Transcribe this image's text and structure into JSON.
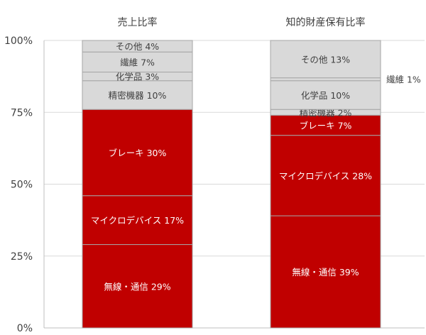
{
  "chart_data": {
    "type": "bar",
    "stacked": true,
    "ylim": [
      0,
      100
    ],
    "yticks": [
      "0%",
      "25%",
      "50%",
      "75%",
      "100%"
    ],
    "grid": true,
    "categories": [
      "売上比率",
      "知的財産保有比率"
    ],
    "colors": {
      "primary": "#c00000",
      "other": "#d9d9d9",
      "edge": "#a6a6a6",
      "axis": "#bfbfbf",
      "grid": "#d9d9d9",
      "text_dark": "#404040"
    },
    "bars": [
      {
        "title": "売上比率",
        "segments": [
          {
            "label": "無線・通信 29%",
            "value": 29,
            "color": "#c00000"
          },
          {
            "label": "マイクロデバイス 17%",
            "value": 17,
            "color": "#c00000"
          },
          {
            "label": "ブレーキ 30%",
            "value": 30,
            "color": "#c00000"
          },
          {
            "label": "精密機器 10%",
            "value": 10,
            "color": "#d9d9d9"
          },
          {
            "label": "化学品 3%",
            "value": 3,
            "color": "#d9d9d9"
          },
          {
            "label": "繊維 7%",
            "value": 7,
            "color": "#d9d9d9"
          },
          {
            "label": "その他 4%",
            "value": 4,
            "color": "#d9d9d9"
          }
        ]
      },
      {
        "title": "知的財産保有比率",
        "segments": [
          {
            "label": "無線・通信 39%",
            "value": 39,
            "color": "#c00000"
          },
          {
            "label": "マイクロデバイス 28%",
            "value": 28,
            "color": "#c00000"
          },
          {
            "label": "ブレーキ 7%",
            "value": 7,
            "color": "#c00000"
          },
          {
            "label": "精密機器 2%",
            "value": 2,
            "color": "#d9d9d9"
          },
          {
            "label": "化学品 10%",
            "value": 10,
            "color": "#d9d9d9"
          },
          {
            "label": "繊維 1%",
            "value": 1,
            "color": "#d9d9d9",
            "label_outside": true
          },
          {
            "label": "その他 13%",
            "value": 13,
            "color": "#d9d9d9"
          }
        ]
      }
    ]
  }
}
